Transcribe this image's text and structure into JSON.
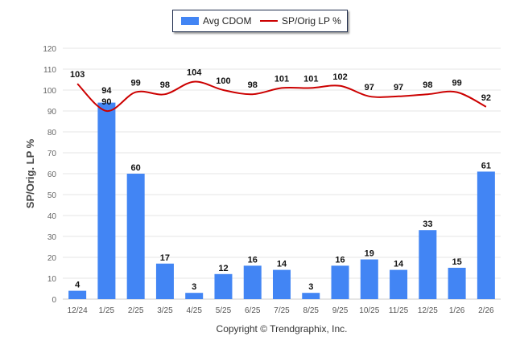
{
  "chart_data": {
    "type": "bar",
    "title": "",
    "ylabel": "SP/Orig. LP %",
    "xlabel": "",
    "ylim": [
      0,
      120
    ],
    "yticks": [
      0,
      10,
      20,
      30,
      40,
      50,
      60,
      70,
      80,
      90,
      100,
      110,
      120
    ],
    "grid": true,
    "legend_position": "top-center",
    "categories": [
      "12/24",
      "1/25",
      "2/25",
      "3/25",
      "4/25",
      "5/25",
      "6/25",
      "7/25",
      "8/25",
      "9/25",
      "10/25",
      "11/25",
      "12/25",
      "1/26",
      "2/26"
    ],
    "series": [
      {
        "name": "Avg CDOM",
        "type": "bar",
        "color": "#4285f4",
        "values": [
          4,
          94,
          60,
          17,
          3,
          12,
          16,
          14,
          3,
          16,
          19,
          14,
          33,
          15,
          61
        ]
      },
      {
        "name": "SP/Orig LP %",
        "type": "line",
        "color": "#cc0000",
        "values": [
          103,
          90,
          99,
          98,
          104,
          100,
          98,
          101,
          101,
          102,
          97,
          97,
          98,
          99,
          92
        ]
      }
    ]
  },
  "footer": {
    "copyright": "Copyright © Trendgraphix, Inc."
  }
}
